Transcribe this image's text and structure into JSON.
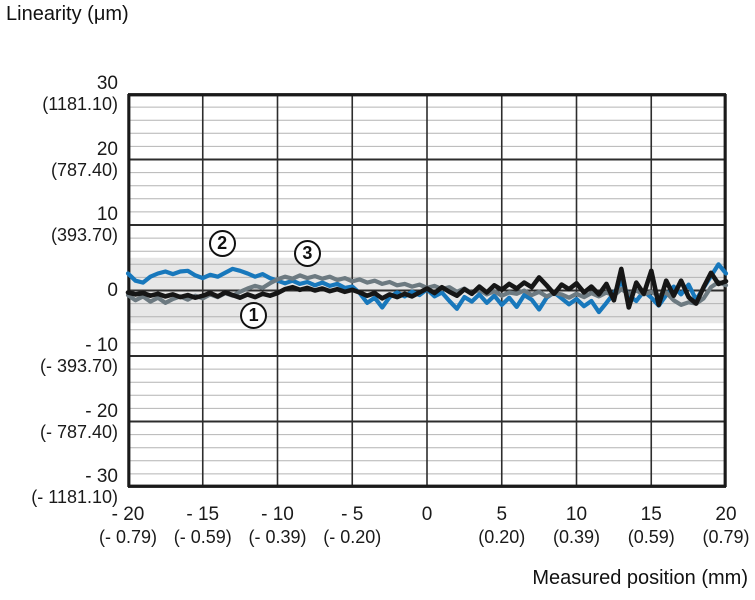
{
  "page": {
    "y_axis_title": "Linearity (μm)",
    "x_axis_title": "Measured position (mm)"
  },
  "chart_data": {
    "type": "line",
    "title": "Linearity (μm)",
    "xlabel": "Measured position (mm)",
    "ylabel": "Linearity (μm)",
    "xlim": [
      -20,
      20
    ],
    "ylim": [
      -30,
      30
    ],
    "x_major_step": 5,
    "y_major_step": 10,
    "y_minor_step": 2,
    "grid": "major horizontal and vertical dark, minor horizontal light every 2 um, no legend box",
    "tolerance_band": {
      "from": -5,
      "to": 5,
      "color": "#e7e7e7"
    },
    "colors": {
      "grid_minor": "#b4b4b4",
      "grid_major": "#2d2d2d",
      "frame": "#1a1a1a"
    },
    "y_ticks": [
      {
        "value": 30,
        "label": "30",
        "sub": "(1181.10)"
      },
      {
        "value": 20,
        "label": "20",
        "sub": "(787.40)"
      },
      {
        "value": 10,
        "label": "10",
        "sub": "(393.70)"
      },
      {
        "value": 0,
        "label": "0",
        "sub": ""
      },
      {
        "value": -10,
        "label": "- 10",
        "sub": "(- 393.70)"
      },
      {
        "value": -20,
        "label": "- 20",
        "sub": "(- 787.40)"
      },
      {
        "value": -30,
        "label": "- 30",
        "sub": "(- 1181.10)"
      }
    ],
    "x_ticks": [
      {
        "value": -20,
        "label": "- 20",
        "sub": "(- 0.79)"
      },
      {
        "value": -15,
        "label": "- 15",
        "sub": "(- 0.59)"
      },
      {
        "value": -10,
        "label": "- 10",
        "sub": "(- 0.39)"
      },
      {
        "value": -5,
        "label": "- 5",
        "sub": "(- 0.20)"
      },
      {
        "value": 0,
        "label": "0",
        "sub": ""
      },
      {
        "value": 5,
        "label": "5",
        "sub": "(0.20)"
      },
      {
        "value": 10,
        "label": "10",
        "sub": "(0.39)"
      },
      {
        "value": 15,
        "label": "15",
        "sub": "(0.59)"
      },
      {
        "value": 20,
        "label": "20",
        "sub": "(0.79)"
      }
    ],
    "x_start": -20,
    "x_step": 0.5,
    "series": [
      {
        "name": "2",
        "color": "#1878bc",
        "width": 4.2,
        "y_values": [
          2.6,
          1.5,
          1.2,
          2.1,
          2.6,
          2.9,
          2.5,
          2.9,
          3.0,
          2.3,
          1.9,
          2.4,
          2.1,
          2.7,
          3.3,
          3.0,
          2.6,
          2.1,
          2.5,
          1.9,
          1.5,
          1.1,
          1.5,
          1.0,
          1.3,
          0.8,
          1.2,
          0.7,
          1.0,
          0.4,
          0.6,
          -0.4,
          -1.9,
          -1.1,
          -2.6,
          -1.0,
          -0.3,
          -0.9,
          -0.2,
          -0.7,
          0.2,
          -0.9,
          -0.3,
          -1.6,
          -2.8,
          -1.0,
          -1.7,
          -0.6,
          -1.9,
          -0.8,
          -2.2,
          -1.1,
          -2.5,
          -0.7,
          -1.4,
          -2.9,
          -1.1,
          -0.3,
          -1.2,
          -2.1,
          -1.3,
          -2.4,
          -1.6,
          -3.3,
          -1.9,
          -0.4,
          1.3,
          -0.8,
          -1.6,
          -0.1,
          -1.1,
          -2.3,
          -0.7,
          0.6,
          -0.6,
          0.9,
          -1.4,
          0.4,
          2.2,
          4.0,
          2.6
        ]
      },
      {
        "name": "3",
        "color": "#6d7a81",
        "width": 4.2,
        "y_values": [
          -0.7,
          -1.5,
          -0.9,
          -1.7,
          -1.1,
          -1.9,
          -1.3,
          -0.9,
          -1.4,
          -0.8,
          -1.2,
          -0.6,
          -1.0,
          -0.4,
          -0.8,
          -0.2,
          0.3,
          0.7,
          0.4,
          1.1,
          1.7,
          2.1,
          1.8,
          2.3,
          1.9,
          2.2,
          1.8,
          2.1,
          1.6,
          1.9,
          1.4,
          1.7,
          1.2,
          1.5,
          1.0,
          1.3,
          0.8,
          1.0,
          0.6,
          0.9,
          0.4,
          0.7,
          0.2,
          0.5,
          -0.2,
          0.3,
          -0.4,
          0.1,
          -0.6,
          -0.1,
          -0.8,
          -0.3,
          -0.5,
          0.0,
          -0.7,
          -0.2,
          -0.9,
          -0.4,
          -0.6,
          -1.1,
          -0.5,
          -1.0,
          -0.4,
          -0.9,
          -0.3,
          -0.8,
          0.2,
          -0.5,
          0.0,
          -0.6,
          -0.2,
          -0.8,
          -0.3,
          -1.5,
          -2.2,
          -1.8,
          -2.0,
          -1.2,
          0.5,
          1.3,
          0.8
        ]
      },
      {
        "name": "1",
        "color": "#161616",
        "width": 4.6,
        "y_values": [
          -0.3,
          -0.6,
          -0.4,
          -0.8,
          -0.5,
          -0.9,
          -0.6,
          -1.0,
          -0.7,
          -1.1,
          -0.8,
          -0.4,
          -0.9,
          -0.3,
          -0.7,
          -1.1,
          -0.6,
          -1.0,
          -0.5,
          -0.8,
          -0.4,
          0.2,
          0.5,
          0.1,
          0.4,
          0.0,
          0.3,
          -0.1,
          0.2,
          -0.2,
          0.1,
          -0.3,
          -0.8,
          -0.4,
          -1.2,
          -0.6,
          -1.0,
          -0.5,
          -0.9,
          -0.3,
          0.3,
          -0.4,
          0.5,
          -0.2,
          -0.8,
          0.2,
          -0.5,
          0.6,
          -0.3,
          0.8,
          0.1,
          1.0,
          0.3,
          1.2,
          0.5,
          2.0,
          0.8,
          -0.5,
          0.9,
          0.2,
          1.1,
          -0.3,
          0.6,
          -0.6,
          1.0,
          -1.5,
          3.3,
          -2.6,
          1.2,
          -0.5,
          3.0,
          -2.2,
          1.5,
          -0.8,
          1.5,
          -1.0,
          -2.0,
          0.5,
          2.7,
          1.0,
          1.4
        ]
      }
    ],
    "annotations": [
      {
        "text": "2",
        "x": -13.7,
        "y": 7.25
      },
      {
        "text": "3",
        "x": -8.0,
        "y": 5.6
      },
      {
        "text": "1",
        "x": -11.6,
        "y": -3.75
      }
    ]
  }
}
